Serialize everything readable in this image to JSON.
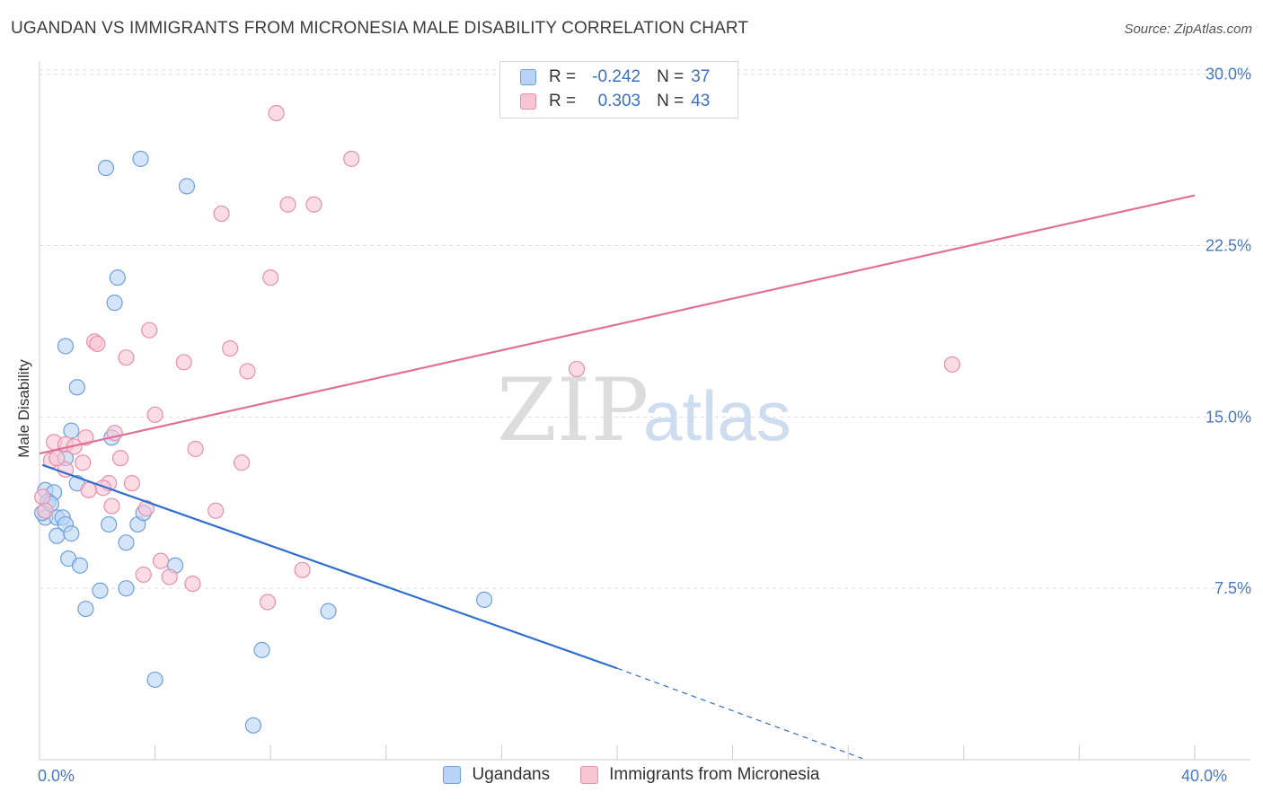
{
  "header": {
    "title": "UGANDAN VS IMMIGRANTS FROM MICRONESIA MALE DISABILITY CORRELATION CHART",
    "source": "Source: ZipAtlas.com"
  },
  "watermark": {
    "zip": "ZIP",
    "atlas": "atlas"
  },
  "legend": {
    "rows": [
      {
        "r_label": "R =",
        "r_value": "-0.242",
        "n_label": "N =",
        "n_value": "37"
      },
      {
        "r_label": "R =",
        "r_value": "0.303",
        "n_label": "N =",
        "n_value": "43"
      }
    ]
  },
  "bottom_legend": {
    "items": [
      "Ugandans",
      "Immigrants from Micronesia"
    ]
  },
  "colors": {
    "blue_fill": "#b8d3f5",
    "blue_stroke": "#6f9fdc",
    "blue_line": "#2f6fd0",
    "pink_fill": "#f9c4d4",
    "pink_stroke": "#e890ac",
    "pink_line": "#e0709a",
    "grid": "#dddddd",
    "axis": "#cccccc",
    "tick_text": "#4a78c4"
  },
  "chart_data": {
    "type": "scatter",
    "title": "UGANDAN VS IMMIGRANTS FROM MICRONESIA MALE DISABILITY CORRELATION CHART",
    "xlabel": "",
    "ylabel": "Male Disability",
    "xlim": [
      0,
      40
    ],
    "ylim": [
      0,
      30.5
    ],
    "x_tick_labels": [
      {
        "value": 0,
        "label": "0.0%"
      },
      {
        "value": 40,
        "label": "40.0%"
      }
    ],
    "y_tick_labels": [
      {
        "value": 7.5,
        "label": "7.5%"
      },
      {
        "value": 15,
        "label": "15.0%"
      },
      {
        "value": 22.5,
        "label": "22.5%"
      },
      {
        "value": 30,
        "label": "30.0%"
      }
    ],
    "x_minor_ticks": [
      0,
      4,
      8,
      12,
      16,
      20,
      24,
      28,
      32,
      36,
      40
    ],
    "series": [
      {
        "name": "Ugandans",
        "color": "#b8d3f5",
        "R": -0.242,
        "N": 37,
        "points": [
          [
            2.3,
            25.9
          ],
          [
            3.5,
            26.3
          ],
          [
            5.1,
            25.1
          ],
          [
            2.7,
            21.1
          ],
          [
            2.6,
            20.0
          ],
          [
            0.9,
            18.1
          ],
          [
            1.3,
            16.3
          ],
          [
            1.1,
            14.4
          ],
          [
            2.5,
            14.1
          ],
          [
            0.9,
            13.2
          ],
          [
            1.3,
            12.1
          ],
          [
            0.2,
            11.8
          ],
          [
            0.5,
            11.7
          ],
          [
            0.3,
            11.3
          ],
          [
            0.2,
            10.6
          ],
          [
            0.6,
            10.6
          ],
          [
            0.8,
            10.6
          ],
          [
            0.9,
            10.3
          ],
          [
            2.4,
            10.3
          ],
          [
            3.4,
            10.3
          ],
          [
            3.6,
            10.8
          ],
          [
            0.6,
            9.8
          ],
          [
            1.1,
            9.9
          ],
          [
            3.0,
            9.5
          ],
          [
            1.0,
            8.8
          ],
          [
            1.4,
            8.5
          ],
          [
            4.7,
            8.5
          ],
          [
            2.1,
            7.4
          ],
          [
            3.0,
            7.5
          ],
          [
            1.6,
            6.6
          ],
          [
            10.0,
            6.5
          ],
          [
            15.4,
            7.0
          ],
          [
            7.7,
            4.8
          ],
          [
            4.0,
            3.5
          ],
          [
            7.4,
            1.5
          ],
          [
            0.1,
            10.8
          ],
          [
            0.4,
            11.2
          ]
        ],
        "trend": {
          "x0": 0.1,
          "y0": 12.9,
          "x1": 20.0,
          "y1": 4.0,
          "dashed_to_x": 28.5,
          "dashed_to_y": 0.05
        }
      },
      {
        "name": "Immigrants from Micronesia",
        "color": "#f9c4d4",
        "R": 0.303,
        "N": 43,
        "points": [
          [
            8.2,
            28.3
          ],
          [
            10.8,
            26.3
          ],
          [
            6.3,
            23.9
          ],
          [
            8.6,
            24.3
          ],
          [
            9.5,
            24.3
          ],
          [
            8.0,
            21.1
          ],
          [
            3.8,
            18.8
          ],
          [
            1.9,
            18.3
          ],
          [
            2.0,
            18.2
          ],
          [
            6.6,
            18.0
          ],
          [
            3.0,
            17.6
          ],
          [
            5.0,
            17.4
          ],
          [
            7.2,
            17.0
          ],
          [
            18.6,
            17.1
          ],
          [
            31.6,
            17.3
          ],
          [
            4.0,
            15.1
          ],
          [
            2.6,
            14.3
          ],
          [
            1.6,
            14.1
          ],
          [
            0.5,
            13.9
          ],
          [
            0.9,
            13.8
          ],
          [
            1.2,
            13.7
          ],
          [
            5.4,
            13.6
          ],
          [
            2.8,
            13.2
          ],
          [
            0.4,
            13.1
          ],
          [
            1.5,
            13.0
          ],
          [
            7.0,
            13.0
          ],
          [
            0.9,
            12.7
          ],
          [
            2.4,
            12.1
          ],
          [
            3.2,
            12.1
          ],
          [
            2.2,
            11.9
          ],
          [
            1.7,
            11.8
          ],
          [
            2.5,
            11.1
          ],
          [
            3.7,
            11.0
          ],
          [
            6.1,
            10.9
          ],
          [
            0.1,
            11.5
          ],
          [
            4.2,
            8.7
          ],
          [
            9.1,
            8.3
          ],
          [
            3.6,
            8.1
          ],
          [
            4.5,
            8.0
          ],
          [
            5.3,
            7.7
          ],
          [
            7.9,
            6.9
          ],
          [
            0.2,
            10.9
          ],
          [
            0.6,
            13.2
          ]
        ],
        "trend": {
          "x0": 0.0,
          "y0": 13.4,
          "x1": 40.0,
          "y1": 24.7
        }
      }
    ]
  }
}
